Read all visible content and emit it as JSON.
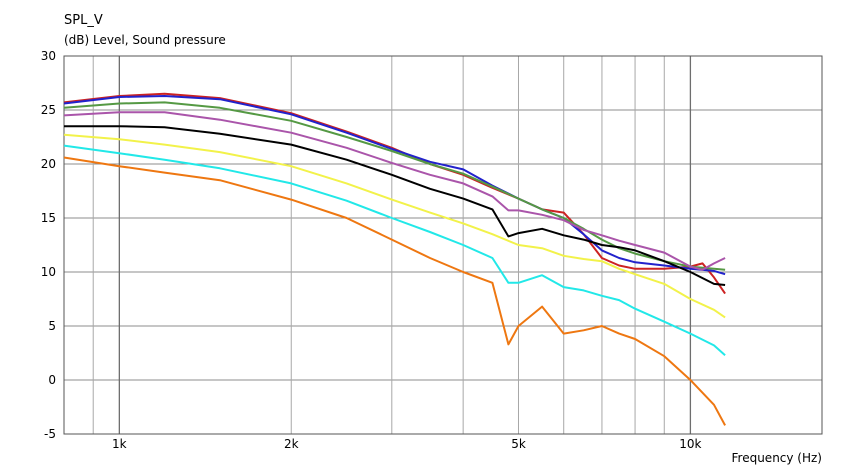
{
  "chart_data": {
    "type": "line",
    "title": "SPL_V",
    "ylabel": "(dB)  Level, Sound pressure",
    "xlabel": "Frequency  (Hz)",
    "x_scale": "log",
    "xlim": [
      800,
      17000
    ],
    "ylim": [
      -5,
      30
    ],
    "yticks": [
      -5,
      0,
      5,
      10,
      15,
      20,
      25,
      30
    ],
    "ytick_labels": [
      "-5",
      "0",
      "5",
      "10",
      "15",
      "20",
      "25",
      "30"
    ],
    "xticks": [
      1000,
      2000,
      5000,
      10000
    ],
    "xtick_labels": [
      "1k",
      "2k",
      "5k",
      "10k"
    ],
    "grid": true,
    "series": [
      {
        "color": "#cc2222",
        "x": [
          800,
          1000,
          1200,
          1500,
          2000,
          2500,
          3000,
          3500,
          4000,
          4500,
          5000,
          5500,
          6000,
          6500,
          7000,
          7500,
          8000,
          9000,
          10000,
          10500,
          11000,
          11500
        ],
        "y": [
          25.7,
          26.3,
          26.5,
          26.1,
          24.7,
          23.0,
          21.5,
          20.0,
          19.0,
          17.8,
          16.8,
          15.8,
          15.5,
          13.5,
          11.3,
          10.6,
          10.3,
          10.3,
          10.5,
          10.8,
          9.5,
          8.0
        ]
      },
      {
        "color": "#2222cc",
        "x": [
          800,
          1000,
          1200,
          1500,
          2000,
          2500,
          3000,
          3500,
          4000,
          4500,
          5000,
          5500,
          6000,
          6500,
          7000,
          7500,
          8000,
          9000,
          10000,
          11000,
          11500
        ],
        "y": [
          25.6,
          26.2,
          26.3,
          26.0,
          24.6,
          22.9,
          21.4,
          20.2,
          19.5,
          18.0,
          16.8,
          15.8,
          15.0,
          13.5,
          12.0,
          11.3,
          10.9,
          10.6,
          10.3,
          10.1,
          9.8
        ]
      },
      {
        "color": "#559944",
        "x": [
          800,
          1000,
          1200,
          1500,
          2000,
          2500,
          3000,
          3500,
          4000,
          4500,
          5000,
          5500,
          6000,
          6500,
          7000,
          7500,
          8000,
          9000,
          10000,
          11000,
          11500
        ],
        "y": [
          25.2,
          25.6,
          25.7,
          25.2,
          24.0,
          22.5,
          21.2,
          20.0,
          19.1,
          17.9,
          16.8,
          15.8,
          15.0,
          14.0,
          13.0,
          12.2,
          11.7,
          11.0,
          10.5,
          10.3,
          10.2
        ]
      },
      {
        "color": "#aa55aa",
        "x": [
          800,
          1000,
          1200,
          1500,
          2000,
          2500,
          3000,
          3500,
          4000,
          4500,
          4800,
          5000,
          5500,
          6000,
          6500,
          7000,
          7500,
          8000,
          9000,
          10000,
          10500,
          11000,
          11500
        ],
        "y": [
          24.5,
          24.8,
          24.8,
          24.1,
          22.9,
          21.5,
          20.1,
          19.0,
          18.2,
          17.0,
          15.7,
          15.7,
          15.3,
          14.8,
          13.9,
          13.4,
          12.9,
          12.5,
          11.8,
          10.5,
          10.2,
          10.8,
          11.3
        ]
      },
      {
        "color": "#000000",
        "x": [
          800,
          1000,
          1200,
          1500,
          2000,
          2500,
          3000,
          3500,
          4000,
          4500,
          4800,
          5000,
          5500,
          6000,
          6500,
          7000,
          7500,
          8000,
          9000,
          10000,
          11000,
          11500
        ],
        "y": [
          23.5,
          23.5,
          23.4,
          22.8,
          21.8,
          20.4,
          19.0,
          17.7,
          16.8,
          15.8,
          13.3,
          13.6,
          14.0,
          13.4,
          13.0,
          12.5,
          12.3,
          12.0,
          11.0,
          10.0,
          8.9,
          8.8
        ]
      },
      {
        "color": "#f2f24a",
        "x": [
          800,
          1000,
          1200,
          1500,
          2000,
          2500,
          3000,
          3500,
          4000,
          4500,
          5000,
          5500,
          6000,
          6500,
          7000,
          7500,
          8000,
          9000,
          10000,
          11000,
          11500
        ],
        "y": [
          22.7,
          22.3,
          21.8,
          21.1,
          19.8,
          18.2,
          16.7,
          15.5,
          14.5,
          13.5,
          12.5,
          12.2,
          11.5,
          11.2,
          11.0,
          10.3,
          9.8,
          8.9,
          7.5,
          6.5,
          5.8
        ]
      },
      {
        "color": "#22e8e8",
        "x": [
          800,
          1000,
          1200,
          1500,
          2000,
          2500,
          3000,
          3500,
          4000,
          4500,
          4800,
          5000,
          5500,
          6000,
          6500,
          7000,
          7500,
          8000,
          9000,
          10000,
          11000,
          11500
        ],
        "y": [
          21.7,
          21.0,
          20.4,
          19.6,
          18.2,
          16.6,
          15.0,
          13.7,
          12.5,
          11.3,
          9.0,
          9.0,
          9.7,
          8.6,
          8.3,
          7.8,
          7.4,
          6.6,
          5.4,
          4.3,
          3.2,
          2.3
        ]
      },
      {
        "color": "#ee7711",
        "x": [
          800,
          1000,
          1200,
          1500,
          2000,
          2500,
          3000,
          3500,
          4000,
          4500,
          4800,
          5000,
          5500,
          6000,
          6500,
          7000,
          7500,
          8000,
          9000,
          10000,
          11000,
          11500
        ],
        "y": [
          20.6,
          19.8,
          19.2,
          18.5,
          16.7,
          15.0,
          13.0,
          11.3,
          10.0,
          9.0,
          3.3,
          5.0,
          6.8,
          4.3,
          4.6,
          5.0,
          4.3,
          3.8,
          2.2,
          0.0,
          -2.3,
          -4.2
        ]
      }
    ]
  }
}
